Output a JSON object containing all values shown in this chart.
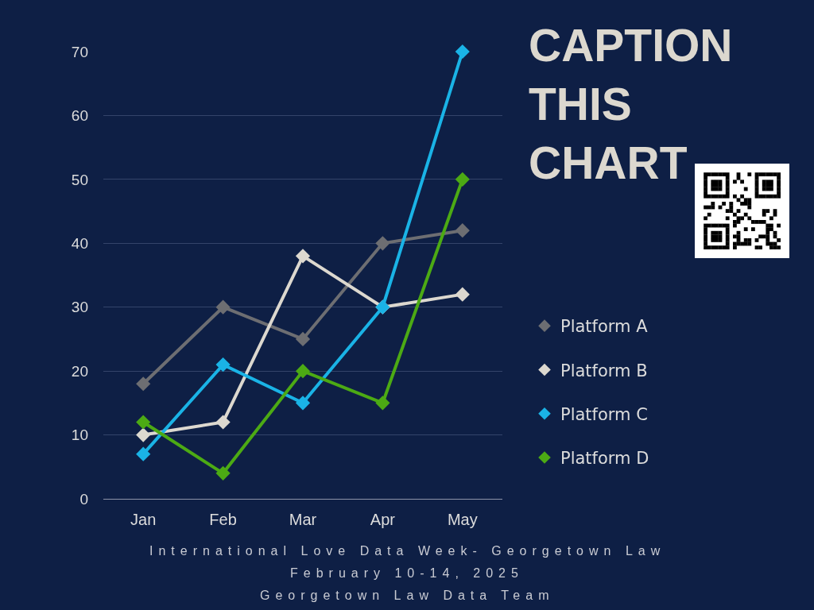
{
  "chart_data": {
    "type": "line",
    "title": "CAPTION THIS CHART",
    "categories": [
      "Jan",
      "Feb",
      "Mar",
      "Apr",
      "May"
    ],
    "series": [
      {
        "name": "Platform A",
        "color": "#6d6e72",
        "values": [
          18,
          30,
          25,
          40,
          42
        ]
      },
      {
        "name": "Platform B",
        "color": "#dcd8cf",
        "values": [
          10,
          12,
          38,
          30,
          32
        ]
      },
      {
        "name": "Platform C",
        "color": "#1ab3e6",
        "values": [
          7,
          21,
          15,
          30,
          70
        ]
      },
      {
        "name": "Platform D",
        "color": "#4caa14",
        "values": [
          12,
          4,
          20,
          15,
          50
        ]
      }
    ],
    "ylim": [
      0,
      70
    ],
    "yticks": [
      0,
      10,
      20,
      30,
      40,
      50,
      60,
      70
    ],
    "grid": "y",
    "legend": "right",
    "marker": "diamond",
    "line_style": "solid",
    "annotations": [
      "International Love Data Week- Georgetown Law",
      "February 10-14, 2025",
      "Georgetown Law Data Team"
    ]
  }
}
